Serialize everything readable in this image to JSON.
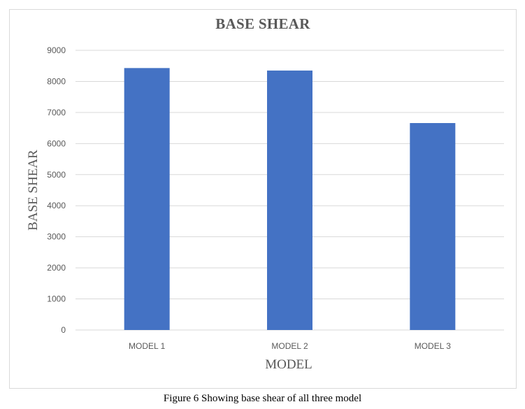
{
  "chart_data": {
    "type": "bar",
    "title": "BASE SHEAR",
    "xlabel": "MODEL",
    "ylabel": "BASE SHEAR",
    "categories": [
      "MODEL 1",
      "MODEL 2",
      "MODEL 3"
    ],
    "values": [
      8430,
      8350,
      6660
    ],
    "ylim": [
      0,
      9000
    ],
    "yticks": [
      0,
      1000,
      2000,
      3000,
      4000,
      5000,
      6000,
      7000,
      8000,
      9000
    ],
    "grid": true,
    "legend": "none",
    "bar_color": "#4472c4"
  },
  "caption": "Figure 6 Showing base shear of all three model"
}
